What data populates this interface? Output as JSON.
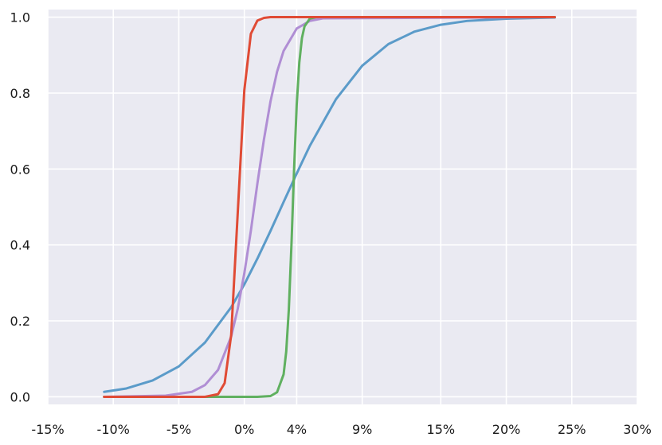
{
  "chart_data": {
    "type": "line",
    "title": "",
    "xlabel": "",
    "ylabel": "",
    "xlim": [
      -15,
      30
    ],
    "ylim": [
      -0.02,
      1.02
    ],
    "x_ticks": [
      -15,
      -10,
      -5,
      0,
      4,
      9,
      15,
      20,
      25,
      30
    ],
    "x_tick_labels": [
      "-15%",
      "-10%",
      "-5%",
      "0%",
      "4%",
      "9%",
      "15%",
      "20%",
      "25%",
      "30%"
    ],
    "y_ticks": [
      0.0,
      0.2,
      0.4,
      0.6,
      0.8,
      1.0
    ],
    "y_tick_labels": [
      "0.0",
      "0.2",
      "0.4",
      "0.6",
      "0.8",
      "1.0"
    ],
    "grid": true,
    "background": "#eaeaf2",
    "legend": "none",
    "series": [
      {
        "color": "#5b9bc9",
        "x": [
          -10.7,
          -9,
          -7,
          -5,
          -3,
          -1,
          0,
          1,
          2,
          3,
          4,
          5,
          7,
          9,
          11,
          13,
          15,
          17,
          20,
          23.7
        ],
        "y": [
          0.013,
          0.022,
          0.043,
          0.08,
          0.143,
          0.236,
          0.296,
          0.364,
          0.437,
          0.513,
          0.588,
          0.661,
          0.784,
          0.872,
          0.929,
          0.962,
          0.98,
          0.99,
          0.996,
          0.999
        ]
      },
      {
        "color": "#b08ed4",
        "x": [
          -10.7,
          -6,
          -4,
          -3,
          -2,
          -1,
          -0.5,
          0,
          0.5,
          1,
          1.5,
          2,
          2.5,
          3,
          4,
          5,
          6,
          23.7
        ],
        "y": [
          0.0,
          0.003,
          0.013,
          0.031,
          0.071,
          0.159,
          0.232,
          0.325,
          0.437,
          0.562,
          0.678,
          0.778,
          0.856,
          0.911,
          0.97,
          0.99,
          0.997,
          1.0
        ]
      },
      {
        "color": "#60b060",
        "x": [
          -10.7,
          1,
          2,
          2.5,
          3,
          3.2,
          3.4,
          3.6,
          3.8,
          4.0,
          4.2,
          4.4,
          4.6,
          5,
          5.5,
          23.7
        ],
        "y": [
          0.0,
          0.0,
          0.002,
          0.012,
          0.059,
          0.119,
          0.231,
          0.401,
          0.599,
          0.769,
          0.881,
          0.945,
          0.976,
          0.996,
          1.0,
          1.0
        ]
      },
      {
        "color": "#e04b35",
        "x": [
          -10.7,
          -3,
          -2,
          -1.5,
          -1,
          -0.5,
          0,
          0.5,
          1,
          1.5,
          2,
          3,
          23.7
        ],
        "y": [
          0.0,
          0.0,
          0.007,
          0.036,
          0.163,
          0.485,
          0.807,
          0.956,
          0.991,
          0.998,
          1.0,
          1.0,
          1.0
        ]
      }
    ]
  }
}
